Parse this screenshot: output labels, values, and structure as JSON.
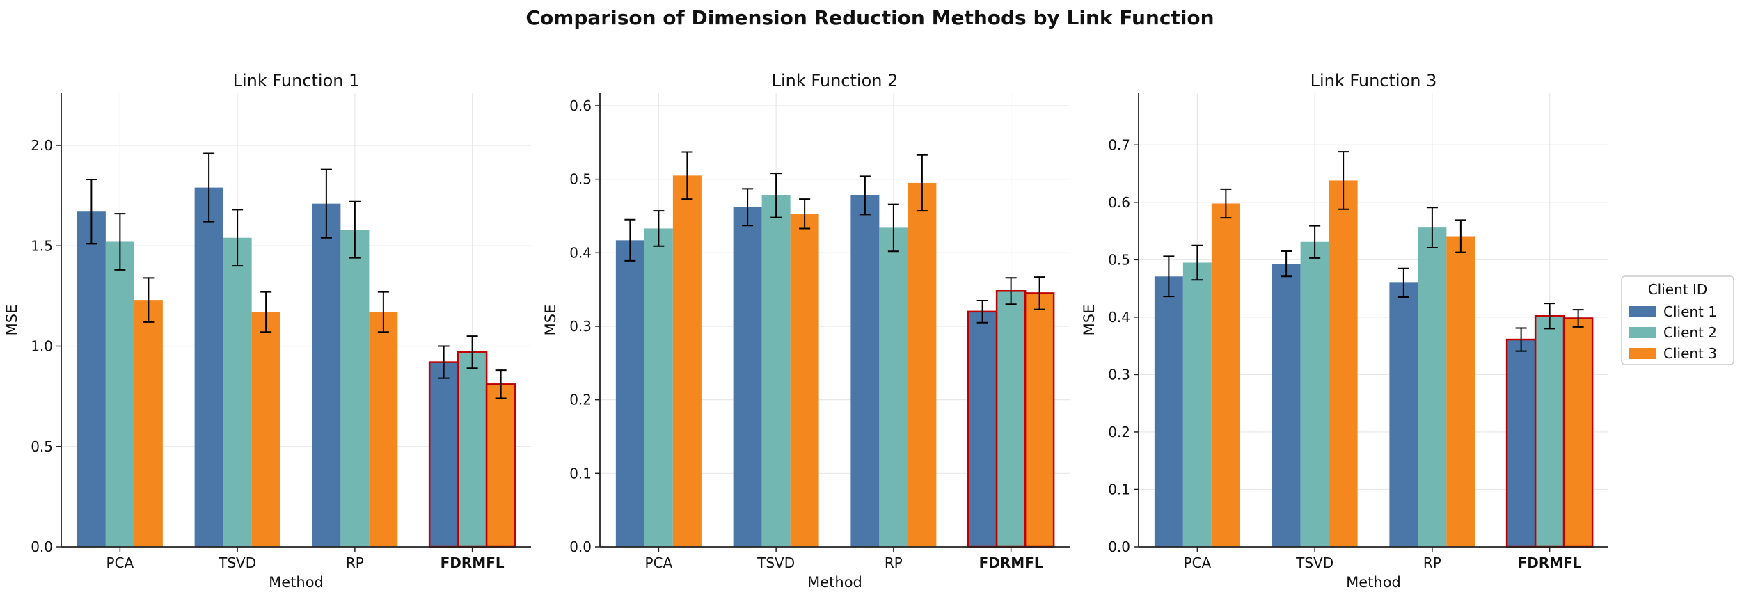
{
  "figure_title": "Comparison of Dimension Reduction Methods by Link Function",
  "legend": {
    "title": "Client ID",
    "placement": "right"
  },
  "colors": {
    "Client 1": "#4a77a8",
    "Client 2": "#72b7b2",
    "Client 3": "#f5871f",
    "highlight_edge": "#c00000",
    "grid": "#e8e8e8",
    "axis": "#222222"
  },
  "chart_data": [
    {
      "type": "bar",
      "title": "Link Function 1",
      "xlabel": "Method",
      "ylabel": "MSE",
      "categories": [
        "PCA",
        "TSVD",
        "RP",
        "FDRMFL"
      ],
      "highlight_category": "FDRMFL",
      "ylim": [
        0,
        2.26
      ],
      "yticks": [
        0.0,
        0.5,
        1.0,
        1.5,
        2.0
      ],
      "ytick_labels": [
        "0.0",
        "0.5",
        "1.0",
        "1.5",
        "2.0"
      ],
      "grid": true,
      "series": [
        {
          "name": "Client 1",
          "values": [
            1.67,
            1.79,
            1.71,
            0.92
          ],
          "errors": [
            0.16,
            0.17,
            0.17,
            0.08
          ]
        },
        {
          "name": "Client 2",
          "values": [
            1.52,
            1.54,
            1.58,
            0.97
          ],
          "errors": [
            0.14,
            0.14,
            0.14,
            0.08
          ]
        },
        {
          "name": "Client 3",
          "values": [
            1.23,
            1.17,
            1.17,
            0.81
          ],
          "errors": [
            0.11,
            0.1,
            0.1,
            0.07
          ]
        }
      ]
    },
    {
      "type": "bar",
      "title": "Link Function 2",
      "xlabel": "Method",
      "ylabel": "MSE",
      "categories": [
        "PCA",
        "TSVD",
        "RP",
        "FDRMFL"
      ],
      "highlight_category": "FDRMFL",
      "ylim": [
        0,
        0.617
      ],
      "yticks": [
        0.0,
        0.1,
        0.2,
        0.3,
        0.4,
        0.5,
        0.6
      ],
      "ytick_labels": [
        "0.0",
        "0.1",
        "0.2",
        "0.3",
        "0.4",
        "0.5",
        "0.6"
      ],
      "grid": true,
      "series": [
        {
          "name": "Client 1",
          "values": [
            0.417,
            0.462,
            0.478,
            0.32
          ],
          "errors": [
            0.028,
            0.025,
            0.026,
            0.015
          ]
        },
        {
          "name": "Client 2",
          "values": [
            0.433,
            0.478,
            0.434,
            0.348
          ],
          "errors": [
            0.024,
            0.03,
            0.032,
            0.018
          ]
        },
        {
          "name": "Client 3",
          "values": [
            0.505,
            0.453,
            0.495,
            0.345
          ],
          "errors": [
            0.032,
            0.02,
            0.038,
            0.022
          ]
        }
      ]
    },
    {
      "type": "bar",
      "title": "Link Function 3",
      "xlabel": "Method",
      "ylabel": "MSE",
      "categories": [
        "PCA",
        "TSVD",
        "RP",
        "FDRMFL"
      ],
      "highlight_category": "FDRMFL",
      "ylim": [
        0,
        0.79
      ],
      "yticks": [
        0.0,
        0.1,
        0.2,
        0.3,
        0.4,
        0.5,
        0.6,
        0.7
      ],
      "ytick_labels": [
        "0.0",
        "0.1",
        "0.2",
        "0.3",
        "0.4",
        "0.5",
        "0.6",
        "0.7"
      ],
      "grid": true,
      "series": [
        {
          "name": "Client 1",
          "values": [
            0.471,
            0.493,
            0.46,
            0.361
          ],
          "errors": [
            0.035,
            0.022,
            0.025,
            0.02
          ]
        },
        {
          "name": "Client 2",
          "values": [
            0.495,
            0.531,
            0.556,
            0.402
          ],
          "errors": [
            0.03,
            0.028,
            0.035,
            0.022
          ]
        },
        {
          "name": "Client 3",
          "values": [
            0.598,
            0.638,
            0.541,
            0.398
          ],
          "errors": [
            0.025,
            0.05,
            0.028,
            0.015
          ]
        }
      ]
    }
  ]
}
